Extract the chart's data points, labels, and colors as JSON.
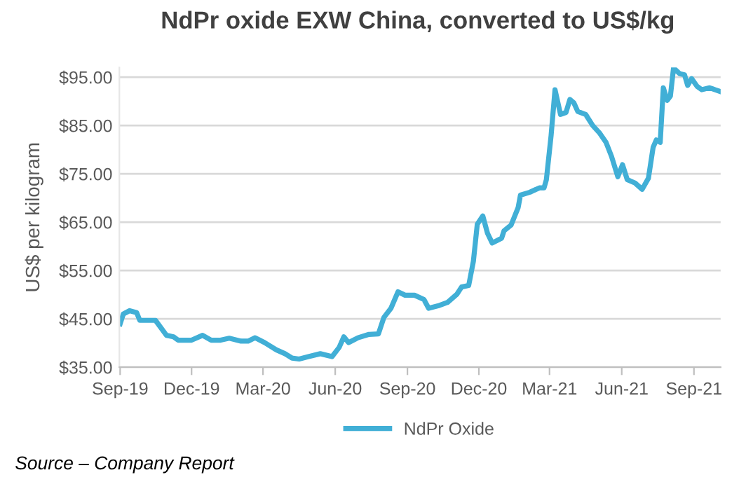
{
  "chart_data": {
    "type": "line",
    "title": "NdPr oxide EXW China, converted to US$/kg",
    "ylabel": "US$ per kilogram",
    "series": [
      {
        "name": "NdPr Oxide",
        "color": "#41afd6",
        "x": [
          "2019-09-01",
          "2019-09-05",
          "2019-09-13",
          "2019-09-22",
          "2019-09-26",
          "2019-10-10",
          "2019-10-16",
          "2019-10-30",
          "2019-11-08",
          "2019-11-14",
          "2019-12-01",
          "2019-12-15",
          "2019-12-26",
          "2020-01-07",
          "2020-01-18",
          "2020-02-02",
          "2020-02-11",
          "2020-02-20",
          "2020-03-03",
          "2020-03-18",
          "2020-03-29",
          "2020-04-07",
          "2020-04-16",
          "2020-04-28",
          "2020-05-13",
          "2020-05-28",
          "2020-06-06",
          "2020-06-12",
          "2020-06-18",
          "2020-06-30",
          "2020-07-14",
          "2020-07-26",
          "2020-08-02",
          "2020-08-11",
          "2020-08-20",
          "2020-08-29",
          "2020-09-10",
          "2020-09-22",
          "2020-09-28",
          "2020-10-10",
          "2020-10-22",
          "2020-11-03",
          "2020-11-09",
          "2020-11-18",
          "2020-11-24",
          "2020-11-29",
          "2020-12-06",
          "2020-12-12",
          "2020-12-18",
          "2020-12-30",
          "2021-01-02",
          "2021-01-11",
          "2021-01-20",
          "2021-01-23",
          "2021-02-04",
          "2021-02-16",
          "2021-02-22",
          "2021-02-25",
          "2021-03-03",
          "2021-03-08",
          "2021-03-15",
          "2021-03-22",
          "2021-03-27",
          "2021-04-01",
          "2021-04-06",
          "2021-04-16",
          "2021-04-25",
          "2021-05-04",
          "2021-05-12",
          "2021-05-19",
          "2021-05-27",
          "2021-06-02",
          "2021-06-08",
          "2021-06-18",
          "2021-06-27",
          "2021-07-05",
          "2021-07-11",
          "2021-07-15",
          "2021-07-20",
          "2021-07-24",
          "2021-07-29",
          "2021-08-02",
          "2021-08-06",
          "2021-08-14",
          "2021-08-20",
          "2021-08-24",
          "2021-08-29",
          "2021-09-05",
          "2021-09-11",
          "2021-09-21",
          "2021-09-28",
          "2021-10-05"
        ],
        "values": [
          44.0,
          46.0,
          46.7,
          46.3,
          44.7,
          44.7,
          44.7,
          41.6,
          41.3,
          40.6,
          40.6,
          41.6,
          40.6,
          40.6,
          41.0,
          40.4,
          40.4,
          41.1,
          40.1,
          38.6,
          37.8,
          36.9,
          36.7,
          37.2,
          37.8,
          37.2,
          39.1,
          41.3,
          40.1,
          41.1,
          41.8,
          41.9,
          45.3,
          47.2,
          50.6,
          49.9,
          49.9,
          49.0,
          47.2,
          47.7,
          48.4,
          50.1,
          51.6,
          51.9,
          56.9,
          64.6,
          66.3,
          62.7,
          60.7,
          61.7,
          63.2,
          64.4,
          68.0,
          70.6,
          71.2,
          72.1,
          72.1,
          73.8,
          82.9,
          92.4,
          87.3,
          87.7,
          90.4,
          89.7,
          87.9,
          87.3,
          85.0,
          83.4,
          81.5,
          78.6,
          74.4,
          76.9,
          73.8,
          73.1,
          71.8,
          74.1,
          80.5,
          82.0,
          81.5,
          92.8,
          90.2,
          91.1,
          96.9,
          95.7,
          95.5,
          93.3,
          94.7,
          93.1,
          92.4,
          92.8,
          92.4,
          92.0
        ]
      }
    ],
    "xlim": [
      "2019-08-31",
      "2021-10-05"
    ],
    "xticks": [
      {
        "value": "2019-09-01",
        "label": "Sep-19"
      },
      {
        "value": "2019-12-01",
        "label": "Dec-19"
      },
      {
        "value": "2020-03-01",
        "label": "Mar-20"
      },
      {
        "value": "2020-06-01",
        "label": "Jun-20"
      },
      {
        "value": "2020-09-01",
        "label": "Sep-20"
      },
      {
        "value": "2020-12-01",
        "label": "Dec-20"
      },
      {
        "value": "2021-03-01",
        "label": "Mar-21"
      },
      {
        "value": "2021-06-01",
        "label": "Jun-21"
      },
      {
        "value": "2021-09-01",
        "label": "Sep-21"
      }
    ],
    "ylim": [
      35,
      97
    ],
    "yticks": [
      {
        "value": 35,
        "label": "$35.00"
      },
      {
        "value": 45,
        "label": "$45.00"
      },
      {
        "value": 55,
        "label": "$55.00"
      },
      {
        "value": 65,
        "label": "$65.00"
      },
      {
        "value": 75,
        "label": "$75.00"
      },
      {
        "value": 85,
        "label": "$85.00"
      },
      {
        "value": 95,
        "label": "$95.00"
      }
    ],
    "grid": "y",
    "legend": "bottom",
    "marker": "none",
    "line_style": "solid",
    "annotations": [
      "Source – Company Report"
    ]
  }
}
